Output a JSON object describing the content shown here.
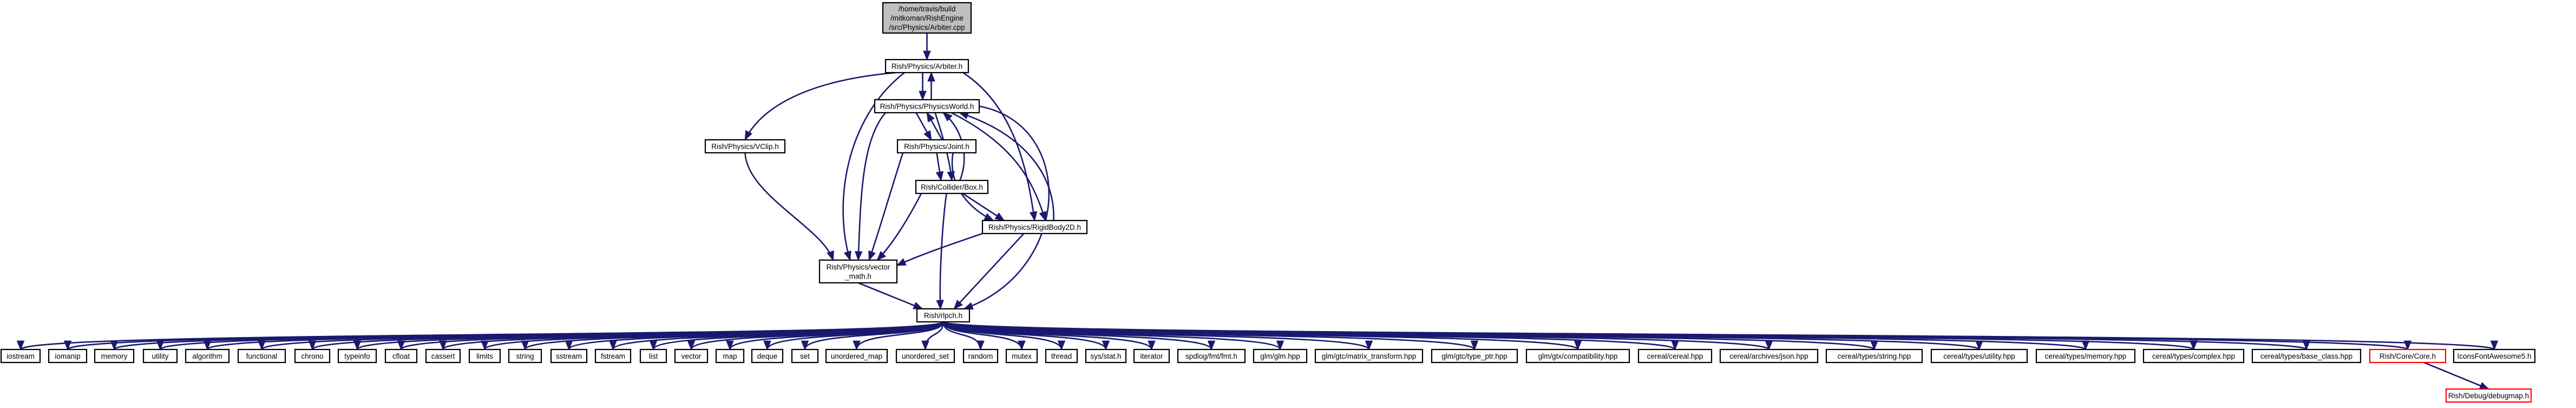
{
  "graph": {
    "nodes": [
      {
        "id": "arbiter_cpp",
        "label": "/home/travis/build\n/mitkoman/RishEngine\n/src/Physics/Arbiter.cpp",
        "style": "root"
      },
      {
        "id": "arbiter_h",
        "label": "Rish/Physics/Arbiter.h",
        "style": "normal"
      },
      {
        "id": "physicsworld_h",
        "label": "Rish/Physics/PhysicsWorld.h",
        "style": "normal"
      },
      {
        "id": "vclip_h",
        "label": "Rish/Physics/VClip.h",
        "style": "normal"
      },
      {
        "id": "joint_h",
        "label": "Rish/Physics/Joint.h",
        "style": "normal"
      },
      {
        "id": "colliderbox_h",
        "label": "Rish/Collider/Box.h",
        "style": "normal"
      },
      {
        "id": "rigidbody2d_h",
        "label": "Rish/Physics/RigidBody2D.h",
        "style": "normal"
      },
      {
        "id": "vector_math_h",
        "label": "Rish/Physics/vector\n_math.h",
        "style": "normal"
      },
      {
        "id": "rlpch_h",
        "label": "Rish/rlpch.h",
        "style": "normal"
      },
      {
        "id": "iostream",
        "label": "iostream",
        "style": "normal"
      },
      {
        "id": "iomanip",
        "label": "iomanip",
        "style": "normal"
      },
      {
        "id": "memory",
        "label": "memory",
        "style": "normal"
      },
      {
        "id": "utility",
        "label": "utility",
        "style": "normal"
      },
      {
        "id": "algorithm",
        "label": "algorithm",
        "style": "normal"
      },
      {
        "id": "functional",
        "label": "functional",
        "style": "normal"
      },
      {
        "id": "chrono",
        "label": "chrono",
        "style": "normal"
      },
      {
        "id": "typeinfo",
        "label": "typeinfo",
        "style": "normal"
      },
      {
        "id": "cfloat",
        "label": "cfloat",
        "style": "normal"
      },
      {
        "id": "cassert",
        "label": "cassert",
        "style": "normal"
      },
      {
        "id": "limits",
        "label": "limits",
        "style": "normal"
      },
      {
        "id": "string",
        "label": "string",
        "style": "normal"
      },
      {
        "id": "sstream",
        "label": "sstream",
        "style": "normal"
      },
      {
        "id": "fstream",
        "label": "fstream",
        "style": "normal"
      },
      {
        "id": "list",
        "label": "list",
        "style": "normal"
      },
      {
        "id": "vector",
        "label": "vector",
        "style": "normal"
      },
      {
        "id": "map",
        "label": "map",
        "style": "normal"
      },
      {
        "id": "deque",
        "label": "deque",
        "style": "normal"
      },
      {
        "id": "set",
        "label": "set",
        "style": "normal"
      },
      {
        "id": "unordered_map",
        "label": "unordered_map",
        "style": "normal"
      },
      {
        "id": "unordered_set",
        "label": "unordered_set",
        "style": "normal"
      },
      {
        "id": "random",
        "label": "random",
        "style": "normal"
      },
      {
        "id": "mutex",
        "label": "mutex",
        "style": "normal"
      },
      {
        "id": "thread",
        "label": "thread",
        "style": "normal"
      },
      {
        "id": "sys_stat_h",
        "label": "sys/stat.h",
        "style": "normal"
      },
      {
        "id": "iterator",
        "label": "iterator",
        "style": "normal"
      },
      {
        "id": "spdlog_fmt",
        "label": "spdlog/fmt/fmt.h",
        "style": "normal"
      },
      {
        "id": "glm_glm",
        "label": "glm/glm.hpp",
        "style": "normal"
      },
      {
        "id": "glm_matrix_transform",
        "label": "glm/gtc/matrix_transform.hpp",
        "style": "normal"
      },
      {
        "id": "glm_type_ptr",
        "label": "glm/gtc/type_ptr.hpp",
        "style": "normal"
      },
      {
        "id": "glm_compat",
        "label": "glm/gtx/compatibility.hpp",
        "style": "normal"
      },
      {
        "id": "cereal",
        "label": "cereal/cereal.hpp",
        "style": "normal"
      },
      {
        "id": "cereal_json",
        "label": "cereal/archives/json.hpp",
        "style": "normal"
      },
      {
        "id": "cereal_string",
        "label": "cereal/types/string.hpp",
        "style": "normal"
      },
      {
        "id": "cereal_utility",
        "label": "cereal/types/utility.hpp",
        "style": "normal"
      },
      {
        "id": "cereal_memory",
        "label": "cereal/types/memory.hpp",
        "style": "normal"
      },
      {
        "id": "cereal_complex",
        "label": "cereal/types/complex.hpp",
        "style": "normal"
      },
      {
        "id": "cereal_base_class",
        "label": "cereal/types/base_class.hpp",
        "style": "normal"
      },
      {
        "id": "core_h",
        "label": "Rish/Core/Core.h",
        "style": "red"
      },
      {
        "id": "iconsfa_h",
        "label": "IconsFontAwesome5.h",
        "style": "normal"
      },
      {
        "id": "debugmap_h",
        "label": "Rish/Debug/debugmap.h",
        "style": "red"
      }
    ]
  }
}
